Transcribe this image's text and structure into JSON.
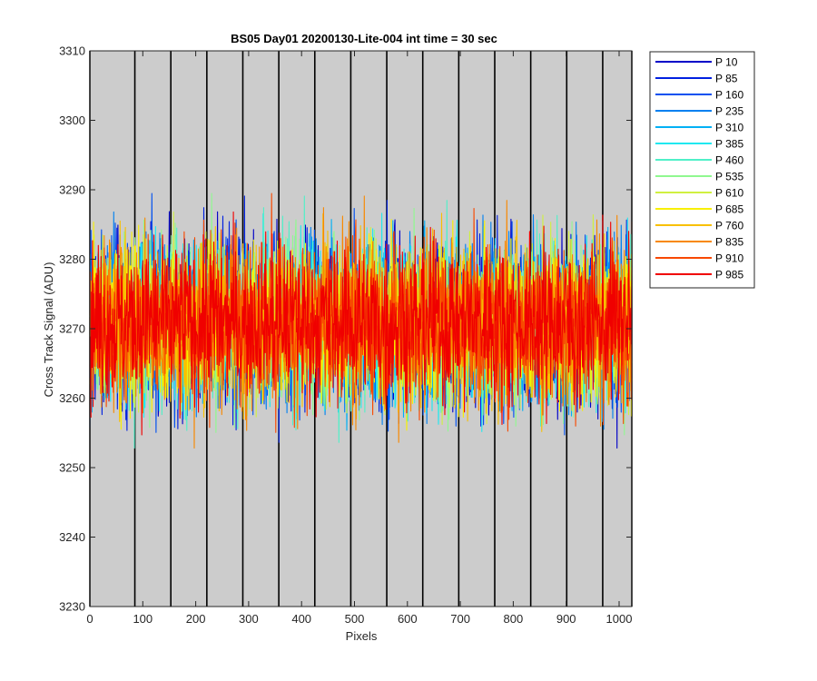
{
  "chart_data": {
    "type": "line",
    "title": "BS05 Day01 20200130-Lite-004 int time = 30 sec",
    "xlabel": "Pixels",
    "ylabel": "Cross Track Signal (ADU)",
    "xlim": [
      0,
      1024
    ],
    "ylim": [
      3230,
      3310
    ],
    "xticks": [
      0,
      100,
      200,
      300,
      400,
      500,
      600,
      700,
      800,
      900,
      1000
    ],
    "yticks": [
      3230,
      3240,
      3250,
      3260,
      3270,
      3280,
      3290,
      3300,
      3310
    ],
    "vertical_lines": [
      0,
      85,
      153,
      221,
      289,
      357,
      425,
      493,
      561,
      629,
      697,
      765,
      833,
      901,
      969,
      1024
    ],
    "background": "#cccccc",
    "legend_position": "outside-top-right",
    "points_per_series": 1024,
    "noise_mean": 3271,
    "noise_std": 7,
    "series": [
      {
        "name": "P 10",
        "color": "#0000c8"
      },
      {
        "name": "P 85",
        "color": "#0020e0"
      },
      {
        "name": "P 160",
        "color": "#0050f0"
      },
      {
        "name": "P 235",
        "color": "#0080f0"
      },
      {
        "name": "P 310",
        "color": "#00b0f5"
      },
      {
        "name": "P 385",
        "color": "#20e8f0"
      },
      {
        "name": "P 460",
        "color": "#50f0c8"
      },
      {
        "name": "P 535",
        "color": "#90f890"
      },
      {
        "name": "P 610",
        "color": "#d0f040"
      },
      {
        "name": "P 685",
        "color": "#f8f000"
      },
      {
        "name": "P 760",
        "color": "#f8c000"
      },
      {
        "name": "P 835",
        "color": "#f88800"
      },
      {
        "name": "P 910",
        "color": "#f84800"
      },
      {
        "name": "P 985",
        "color": "#f00000"
      }
    ]
  }
}
